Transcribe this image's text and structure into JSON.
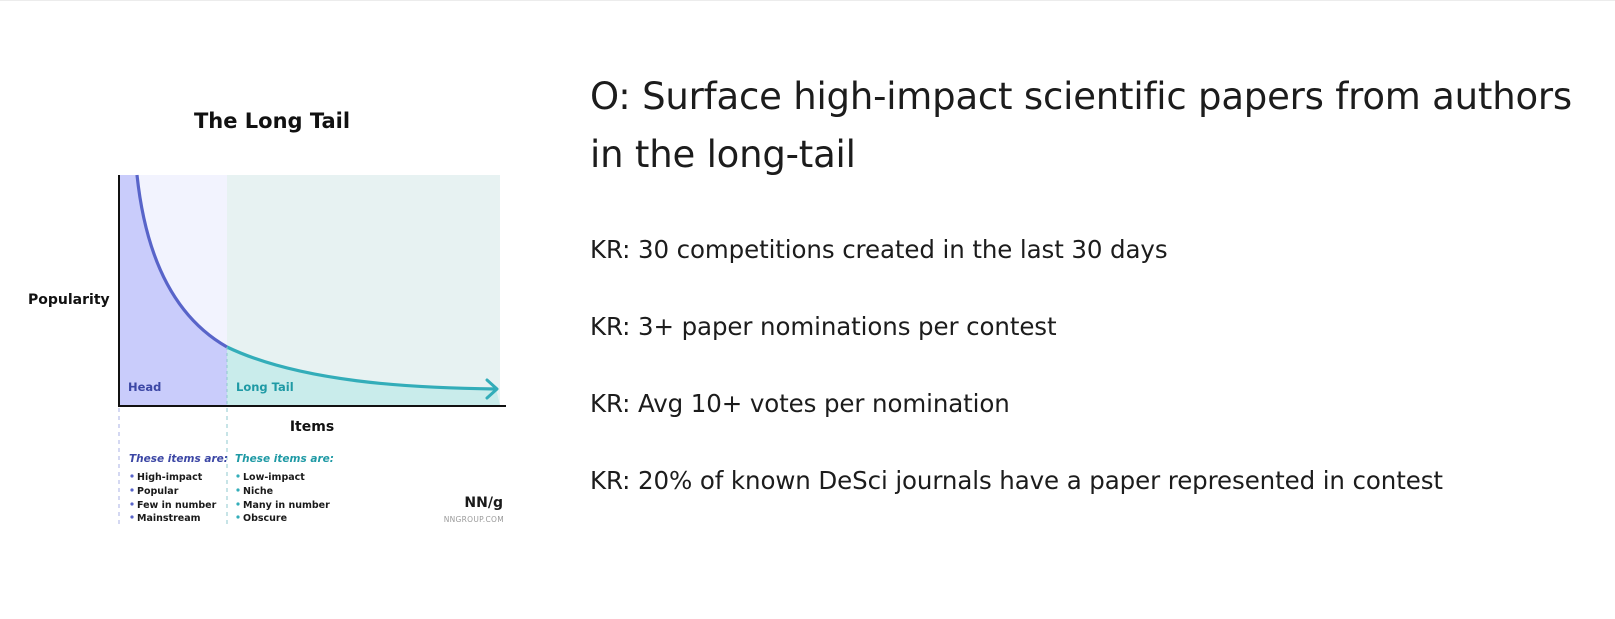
{
  "figure": {
    "title": "The Long Tail",
    "y_axis_label": "Popularity",
    "x_axis_label": "Items",
    "head_label": "Head",
    "tail_label": "Long Tail",
    "head_list": {
      "heading": "These items are:",
      "items": [
        "High-impact",
        "Popular",
        "Few in number",
        "Mainstream"
      ]
    },
    "tail_list": {
      "heading": "These items are:",
      "items": [
        "Low-impact",
        "Niche",
        "Many in number",
        "Obscure"
      ]
    },
    "logo": {
      "mark": "NN/g",
      "url": "NNGROUP.COM"
    },
    "colors": {
      "head_fill": "#c9ccfb",
      "head_bg": "#f2f3fe",
      "tail_fill": "#c9eceb",
      "tail_bg": "#e7f2f2",
      "head_curve": "#5864c9",
      "tail_curve": "#33adb9",
      "head_text": "#3c47a5",
      "tail_text": "#1f9aa5"
    }
  },
  "okr": {
    "objective": "O: Surface high-impact scientific papers from authors in the long-tail",
    "key_results": [
      "KR: 30 competitions created in the last 30 days",
      "KR: 3+ paper nominations per contest",
      "KR: Avg 10+ votes per nomination",
      "KR: 20% of known DeSci journals have a paper represented in contest"
    ]
  }
}
